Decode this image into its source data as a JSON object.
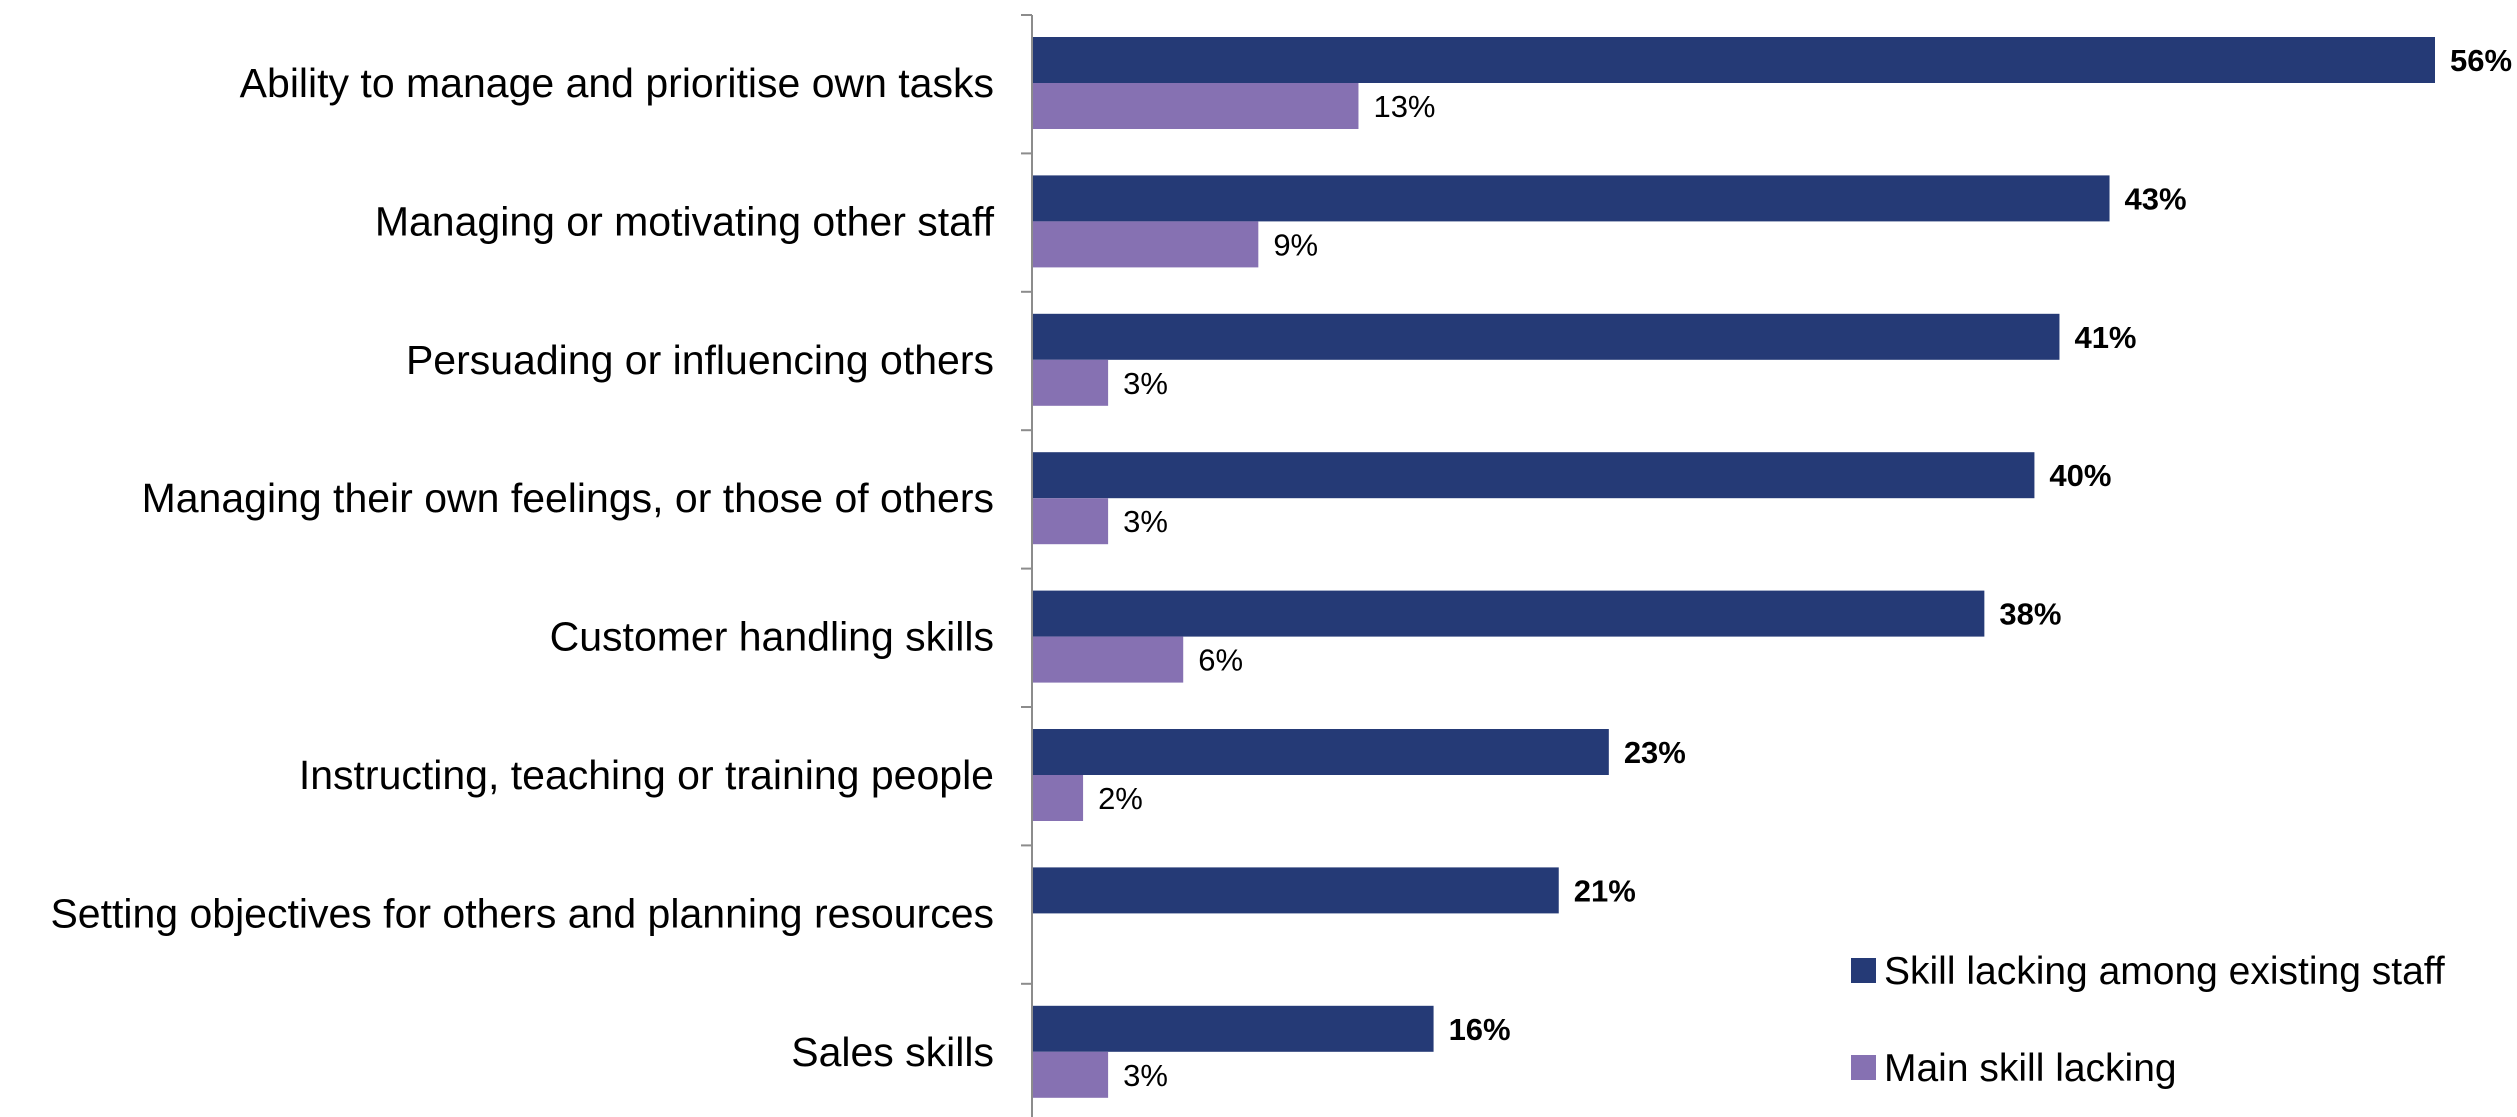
{
  "chart_data": {
    "type": "bar",
    "orientation": "horizontal",
    "categories": [
      "Ability to manage and prioritise own tasks",
      "Managing or motivating other staff",
      "Persuading or influencing others",
      "Managing their own feelings, or those of others",
      "Customer handling skills",
      "Instructing, teaching or training people",
      "Setting objectives for others and planning resources",
      "Sales skills"
    ],
    "series": [
      {
        "name": "Skill lacking among existing staff",
        "color": "#253a76",
        "values": [
          56,
          43,
          41,
          40,
          38,
          23,
          21,
          16
        ],
        "labels": [
          "56%",
          "43%",
          "41%",
          "40%",
          "38%",
          "23%",
          "21%",
          "16%"
        ]
      },
      {
        "name": "Main skill lacking",
        "color": "#8671b2",
        "values": [
          13,
          9,
          3,
          3,
          6,
          2,
          null,
          3
        ],
        "labels": [
          "13%",
          "9%",
          "3%",
          "3%",
          "6%",
          "2%",
          null,
          "3%"
        ]
      }
    ],
    "xlim": [
      0,
      56
    ],
    "grid": false,
    "legend_position": "bottom-right"
  }
}
